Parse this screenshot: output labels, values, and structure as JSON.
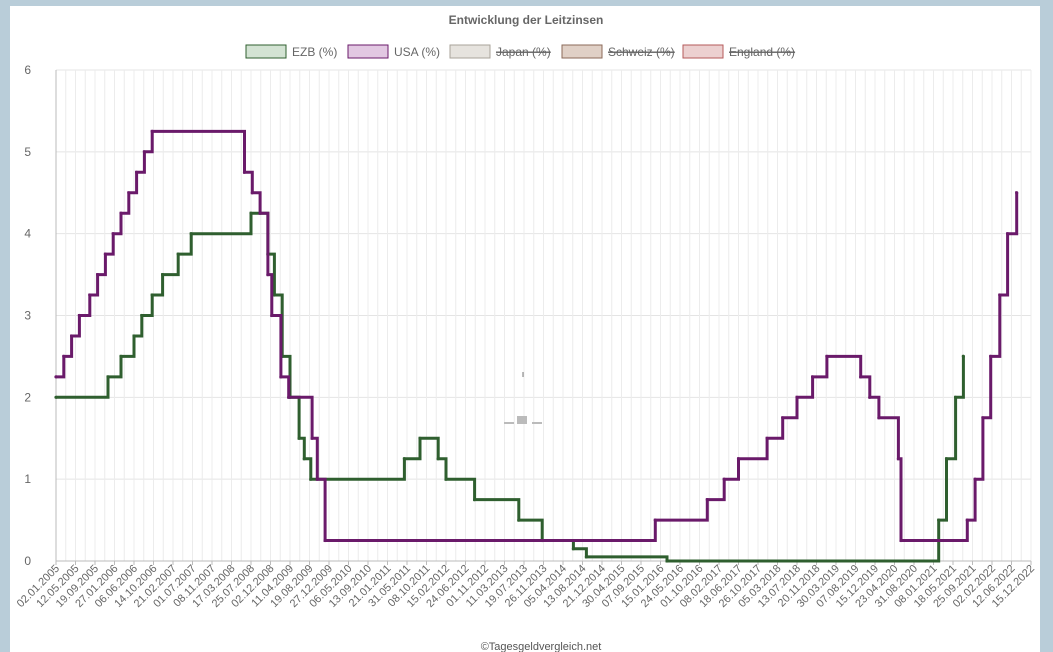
{
  "footer": "©Tagesgeldvergleich.net",
  "chart_data": {
    "type": "line",
    "title": "Entwicklung der Leitzinsen",
    "xlabel": "",
    "ylabel": "",
    "ylim": [
      0,
      6
    ],
    "yticks": [
      "0",
      "1",
      "2",
      "3",
      "4",
      "5",
      "6"
    ],
    "grid": true,
    "legend_position": "top",
    "x_tick_labels": [
      "02.01.2005",
      "12.05.2005",
      "19.09.2005",
      "27.01.2006",
      "06.06.2006",
      "14.10.2006",
      "21.02.2007",
      "01.07.2007",
      "08.11.2007",
      "17.03.2008",
      "25.07.2008",
      "02.12.2008",
      "11.04.2009",
      "19.08.2009",
      "27.12.2009",
      "06.05.2010",
      "13.09.2010",
      "21.01.2011",
      "31.05.2011",
      "08.10.2011",
      "15.02.2012",
      "24.06.2012",
      "01.11.2012",
      "11.03.2013",
      "19.07.2013",
      "26.11.2013",
      "05.04.2014",
      "13.08.2014",
      "21.12.2014",
      "30.04.2015",
      "07.09.2015",
      "15.01.2016",
      "24.05.2016",
      "01.10.2016",
      "08.02.2017",
      "18.06.2017",
      "26.10.2017",
      "05.03.2018",
      "13.07.2018",
      "20.11.2018",
      "30.03.2019",
      "07.08.2019",
      "15.12.2019",
      "23.04.2020",
      "31.08.2020",
      "08.01.2021",
      "18.05.2021",
      "25.09.2021",
      "02.02.2022",
      "12.06.2022",
      "15.12.2022"
    ],
    "series": [
      {
        "name": "EZB (%)",
        "color": "#2f5f2f",
        "fill": "#d3e3d3",
        "hidden": false,
        "steps": [
          [
            0,
            2.0
          ],
          [
            4.0,
            2.25
          ],
          [
            5.0,
            2.5
          ],
          [
            6.0,
            2.75
          ],
          [
            6.6,
            3.0
          ],
          [
            7.4,
            3.25
          ],
          [
            8.2,
            3.5
          ],
          [
            9.4,
            3.75
          ],
          [
            10.4,
            4.0
          ],
          [
            15.0,
            4.25
          ],
          [
            16.3,
            3.75
          ],
          [
            16.8,
            3.25
          ],
          [
            17.4,
            2.5
          ],
          [
            18.0,
            2.0
          ],
          [
            18.7,
            1.5
          ],
          [
            19.1,
            1.25
          ],
          [
            19.6,
            1.0
          ],
          [
            26.8,
            1.25
          ],
          [
            28.0,
            1.5
          ],
          [
            29.4,
            1.25
          ],
          [
            30.0,
            1.0
          ],
          [
            32.2,
            0.75
          ],
          [
            35.6,
            0.5
          ],
          [
            37.4,
            0.25
          ],
          [
            39.8,
            0.15
          ],
          [
            40.8,
            0.05
          ],
          [
            47.0,
            0.0
          ],
          [
            67.9,
            0.5
          ],
          [
            68.5,
            1.25
          ],
          [
            69.2,
            2.0
          ],
          [
            69.8,
            2.5
          ]
        ]
      },
      {
        "name": "USA (%)",
        "color": "#6a1a6a",
        "fill": "#e2c8e2",
        "hidden": false,
        "steps": [
          [
            0,
            2.25
          ],
          [
            0.6,
            2.5
          ],
          [
            1.2,
            2.75
          ],
          [
            1.8,
            3.0
          ],
          [
            2.6,
            3.25
          ],
          [
            3.2,
            3.5
          ],
          [
            3.8,
            3.75
          ],
          [
            4.4,
            4.0
          ],
          [
            5.0,
            4.25
          ],
          [
            5.6,
            4.5
          ],
          [
            6.2,
            4.75
          ],
          [
            6.8,
            5.0
          ],
          [
            7.4,
            5.25
          ],
          [
            14.5,
            4.75
          ],
          [
            15.1,
            4.5
          ],
          [
            15.7,
            4.25
          ],
          [
            16.3,
            3.5
          ],
          [
            16.6,
            3.0
          ],
          [
            17.3,
            2.25
          ],
          [
            17.9,
            2.0
          ],
          [
            19.7,
            1.5
          ],
          [
            20.1,
            1.0
          ],
          [
            20.7,
            0.25
          ],
          [
            46.1,
            0.5
          ],
          [
            50.1,
            0.75
          ],
          [
            51.4,
            1.0
          ],
          [
            52.5,
            1.25
          ],
          [
            54.7,
            1.5
          ],
          [
            55.9,
            1.75
          ],
          [
            57.0,
            2.0
          ],
          [
            58.2,
            2.25
          ],
          [
            59.3,
            2.5
          ],
          [
            61.9,
            2.25
          ],
          [
            62.6,
            2.0
          ],
          [
            63.3,
            1.75
          ],
          [
            64.8,
            1.25
          ],
          [
            65.0,
            0.25
          ],
          [
            70.1,
            0.5
          ],
          [
            70.7,
            1.0
          ],
          [
            71.3,
            1.75
          ],
          [
            71.9,
            2.5
          ],
          [
            72.6,
            3.25
          ],
          [
            73.2,
            4.0
          ],
          [
            73.9,
            4.5
          ]
        ]
      },
      {
        "name": "Japan (%)",
        "color": "#a8a39a",
        "fill": "#e6e3de",
        "hidden": true,
        "steps": []
      },
      {
        "name": "Schweiz (%)",
        "color": "#8b6a58",
        "fill": "#e0d0c6",
        "hidden": true,
        "steps": []
      },
      {
        "name": "England (%)",
        "color": "#b55a5a",
        "fill": "#ecd0d0",
        "hidden": true,
        "steps": []
      }
    ]
  }
}
